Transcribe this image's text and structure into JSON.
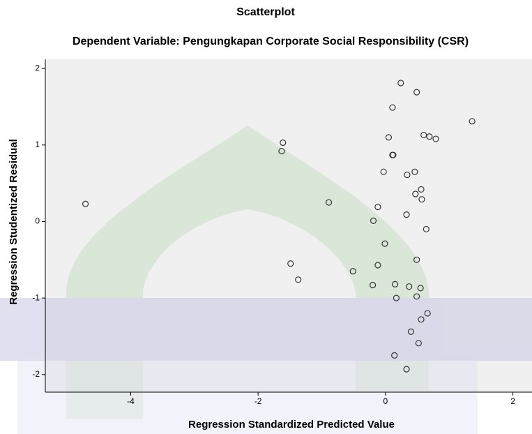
{
  "chart_data": {
    "type": "scatter",
    "title": "Scatterplot",
    "subtitle": "Dependent Variable: Pengungkapan Corporate Social Responsibility (CSR)",
    "x_label": "Regression Standardized Predicted Value",
    "y_label": "Regression Studentized Residual",
    "x": [
      -4.71,
      -1.61,
      -1.63,
      -0.89,
      -1.49,
      -1.37,
      0.24,
      0.49,
      0.11,
      1.36,
      0.05,
      0.6,
      0.69,
      0.79,
      0.11,
      0.12,
      -0.03,
      0.34,
      0.46,
      0.56,
      0.47,
      0.57,
      -0.12,
      0.33,
      -0.19,
      0.64,
      -0.01,
      0.49,
      -0.51,
      -0.12,
      -0.2,
      0.15,
      0.37,
      0.55,
      0.17,
      0.49,
      0.66,
      0.56,
      0.4,
      0.52,
      0.14,
      0.33
    ],
    "y": [
      0.23,
      1.03,
      0.92,
      0.25,
      -0.55,
      -0.76,
      1.81,
      1.69,
      1.49,
      1.31,
      1.1,
      1.13,
      1.11,
      1.08,
      0.87,
      0.87,
      0.65,
      0.61,
      0.65,
      0.42,
      0.36,
      0.29,
      0.19,
      0.09,
      0.01,
      -0.1,
      -0.29,
      -0.5,
      -0.65,
      -0.57,
      -0.83,
      -0.82,
      -0.85,
      -0.87,
      -1.0,
      -0.98,
      -1.2,
      -1.28,
      -1.44,
      -1.59,
      -1.75,
      -1.93
    ],
    "xlim": [
      -5.34,
      2.3
    ],
    "ylim": [
      -2.23,
      2.12
    ],
    "xticks": [
      -4,
      -2,
      0,
      2
    ],
    "yticks": [
      -2,
      -1,
      0,
      1,
      2
    ],
    "color": "#333333",
    "plot_background": "#f0f0f0"
  }
}
